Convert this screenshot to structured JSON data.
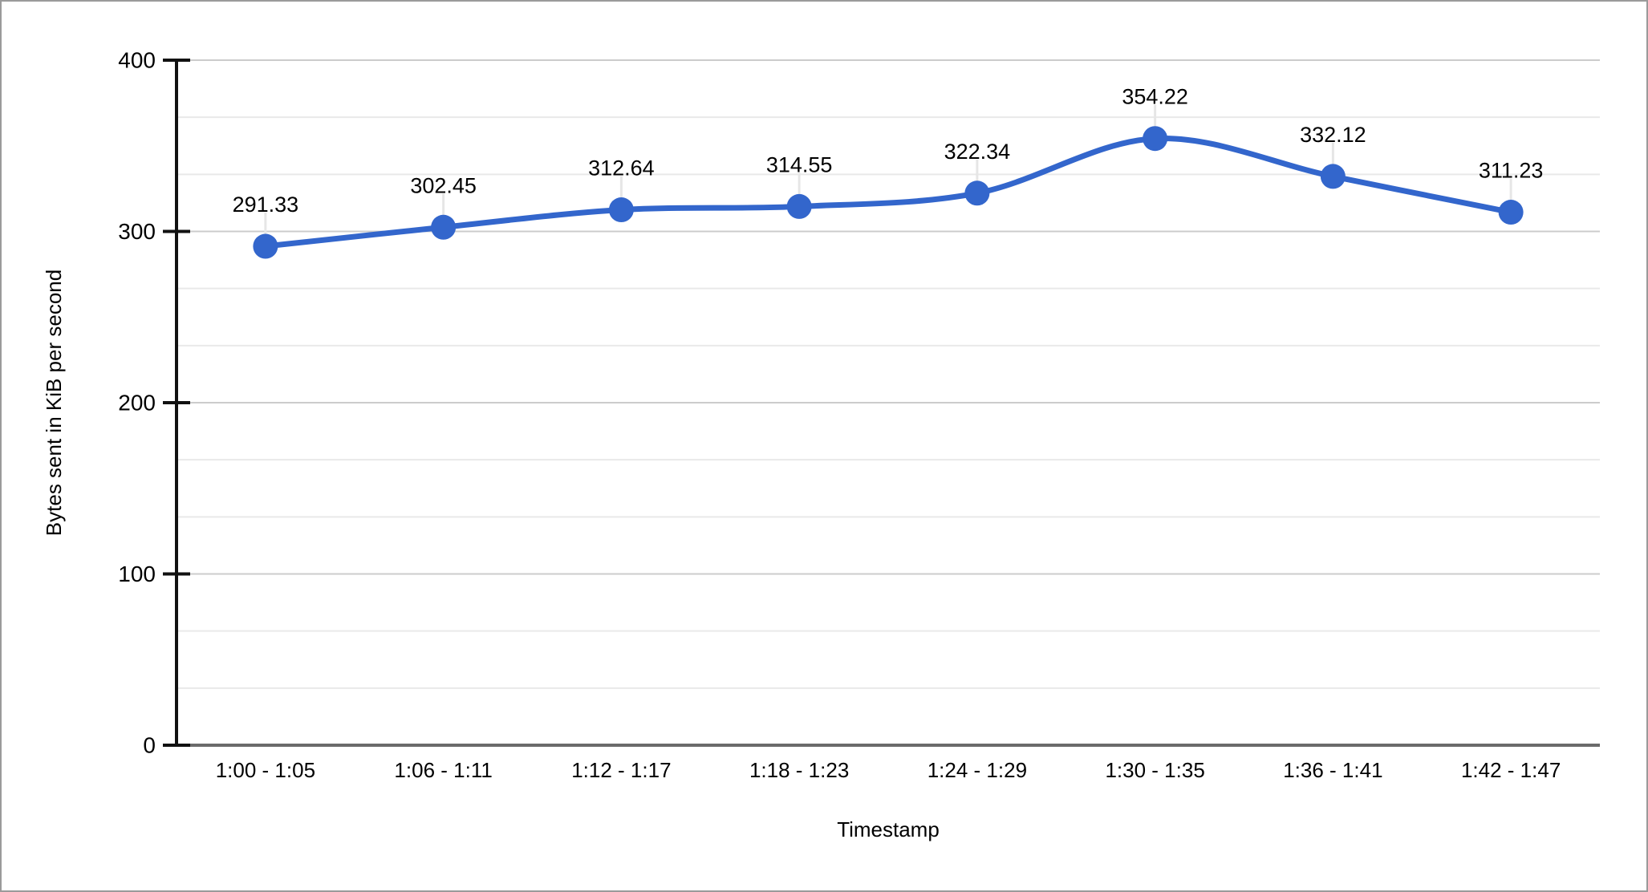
{
  "chart_data": {
    "type": "line",
    "curve": "smooth",
    "categories": [
      "1:00 - 1:05",
      "1:06 - 1:11",
      "1:12 - 1:17",
      "1:18 - 1:23",
      "1:24 - 1:29",
      "1:30 - 1:35",
      "1:36 - 1:41",
      "1:42 - 1:47"
    ],
    "values": [
      291.33,
      302.45,
      312.64,
      314.55,
      322.34,
      354.22,
      332.12,
      311.23
    ],
    "point_labels": [
      "291.33",
      "302.45",
      "312.64",
      "314.55",
      "322.34",
      "354.22",
      "332.12",
      "311.23"
    ],
    "xlabel": "Timestamp",
    "ylabel": "Bytes sent in KiB per second",
    "ylim": [
      0,
      400
    ],
    "y_ticks": [
      0,
      100,
      200,
      300,
      400
    ],
    "y_tick_labels": [
      "0",
      "100",
      "200",
      "300",
      "400"
    ],
    "y_minor_divisions": 3,
    "grid": "on",
    "legend": "none",
    "colors": {
      "series": "#3366cc",
      "annotation_text": "#3666cc",
      "major_gridline": "#cccccc",
      "minor_gridline": "#e9e9e9",
      "baseline": "#6b6b6b",
      "axis": "#111111",
      "annotation_stem": "#e6e6e6",
      "background": "#ffffff",
      "frame_border": "#9a9a9a"
    }
  }
}
